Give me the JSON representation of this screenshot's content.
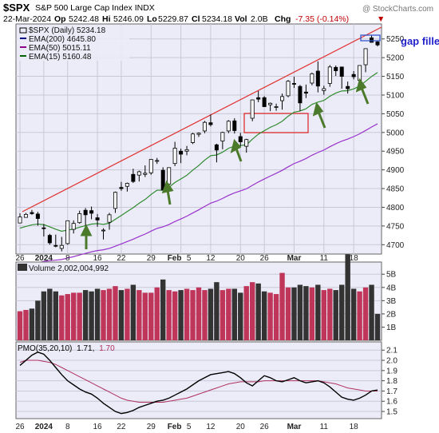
{
  "header": {
    "symbol": "$SPX",
    "name": "S&P 500 Large Cap Index INDX",
    "date": "22-Mar-2024",
    "open_label": "Op",
    "open": "5242.48",
    "high_label": "Hi",
    "high": "5246.09",
    "low_label": "Lo",
    "low": "5229.87",
    "close_label": "Cl",
    "close": "5234.18",
    "vol_label": "Vol",
    "vol": "2.0B",
    "chg_label": "Chg",
    "chg": "-7.35 (-0.14%)",
    "chg_arrow": "▼",
    "watermark": "@ StockCharts.com"
  },
  "price_panel": {
    "legend": [
      {
        "label": "$SPX (Daily) 5234.18",
        "color": "#000000"
      },
      {
        "label": "EMA(200) 4645.80",
        "color": "#00008b"
      },
      {
        "label": "EMA(50) 5015.11",
        "color": "#8b008b"
      },
      {
        "label": "EMA(15) 5160.48",
        "color": "#006400"
      }
    ],
    "annotation": "gap filled",
    "y_ticks": [
      "5250",
      "5200",
      "5150",
      "5100",
      "5050",
      "5000",
      "4950",
      "4900",
      "4850",
      "4800",
      "4750",
      "4700"
    ]
  },
  "volume_panel": {
    "legend": "Volume 2,002,004,992",
    "y_ticks": [
      "5B",
      "4B",
      "3B",
      "2B",
      "1B"
    ]
  },
  "pmo_panel": {
    "legend_prefix": "PMO(35,20,10)",
    "legend_value1": "1.71,",
    "legend_value2": "1.70",
    "y_ticks": [
      "2.1",
      "2.0",
      "1.9",
      "1.8",
      "1.7",
      "1.6",
      "1.5"
    ]
  },
  "x_axis": {
    "labels": [
      {
        "text": "26",
        "bold": false
      },
      {
        "text": "2024",
        "bold": true
      },
      {
        "text": "8",
        "bold": false
      },
      {
        "text": "16",
        "bold": false
      },
      {
        "text": "22",
        "bold": false
      },
      {
        "text": "29",
        "bold": false
      },
      {
        "text": "Feb",
        "bold": true
      },
      {
        "text": "5",
        "bold": false
      },
      {
        "text": "12",
        "bold": false
      },
      {
        "text": "20",
        "bold": false
      },
      {
        "text": "26",
        "bold": false
      },
      {
        "text": "Mar",
        "bold": true
      },
      {
        "text": "11",
        "bold": false
      },
      {
        "text": "18",
        "bold": false
      }
    ]
  },
  "colors": {
    "up_candle": "#ffffff",
    "down_candle": "#000000",
    "trendline": "#e03030",
    "ema15": "#2e8b2e",
    "ema50": "#9932cc",
    "arrow": "#4a7a2a",
    "vol_up": "#c0365a",
    "vol_down": "#333333",
    "pmo_line": "#000000",
    "pmo_signal": "#b03060",
    "gap_box": "#3355cc",
    "red_box": "#dd2222"
  },
  "chart_data": {
    "type": "candlestick",
    "x": [
      "Dec 26",
      "Dec 27",
      "Dec 28",
      "Dec 29",
      "Jan 2",
      "Jan 3",
      "Jan 4",
      "Jan 5",
      "Jan 8",
      "Jan 9",
      "Jan 10",
      "Jan 11",
      "Jan 12",
      "Jan 16",
      "Jan 17",
      "Jan 18",
      "Jan 19",
      "Jan 22",
      "Jan 23",
      "Jan 24",
      "Jan 25",
      "Jan 26",
      "Jan 29",
      "Jan 30",
      "Jan 31",
      "Feb 1",
      "Feb 2",
      "Feb 5",
      "Feb 6",
      "Feb 7",
      "Feb 8",
      "Feb 9",
      "Feb 12",
      "Feb 13",
      "Feb 14",
      "Feb 15",
      "Feb 16",
      "Feb 20",
      "Feb 21",
      "Feb 22",
      "Feb 23",
      "Feb 26",
      "Feb 27",
      "Feb 28",
      "Feb 29",
      "Mar 1",
      "Mar 4",
      "Mar 5",
      "Mar 6",
      "Mar 7",
      "Mar 8",
      "Mar 11",
      "Mar 12",
      "Mar 13",
      "Mar 14",
      "Mar 15",
      "Mar 18",
      "Mar 19",
      "Mar 20",
      "Mar 21",
      "Mar 22"
    ],
    "ohlc": [
      [
        4758,
        4784,
        4758,
        4774
      ],
      [
        4773,
        4785,
        4773,
        4781
      ],
      [
        4786,
        4793,
        4780,
        4783
      ],
      [
        4782,
        4788,
        4751,
        4770
      ],
      [
        4745,
        4755,
        4722,
        4743
      ],
      [
        4725,
        4729,
        4700,
        4705
      ],
      [
        4698,
        4727,
        4693,
        4697
      ],
      [
        4690,
        4721,
        4682,
        4698
      ],
      [
        4703,
        4764,
        4700,
        4764
      ],
      [
        4741,
        4765,
        4730,
        4757
      ],
      [
        4759,
        4791,
        4756,
        4783
      ],
      [
        4792,
        4798,
        4740,
        4780
      ],
      [
        4791,
        4802,
        4768,
        4784
      ],
      [
        4772,
        4782,
        4748,
        4766
      ],
      [
        4739,
        4744,
        4714,
        4739
      ],
      [
        4760,
        4785,
        4740,
        4780
      ],
      [
        4797,
        4842,
        4785,
        4840
      ],
      [
        4853,
        4868,
        4844,
        4850
      ],
      [
        4856,
        4866,
        4842,
        4864
      ],
      [
        4888,
        4903,
        4865,
        4869
      ],
      [
        4886,
        4898,
        4869,
        4895
      ],
      [
        4888,
        4912,
        4881,
        4891
      ],
      [
        4892,
        4929,
        4887,
        4928
      ],
      [
        4925,
        4932,
        4916,
        4925
      ],
      [
        4899,
        4907,
        4845,
        4846
      ],
      [
        4862,
        4906,
        4853,
        4906
      ],
      [
        4917,
        4975,
        4910,
        4958
      ],
      [
        4950,
        4957,
        4918,
        4942
      ],
      [
        4950,
        4964,
        4939,
        4954
      ],
      [
        4973,
        4999,
        4969,
        4996
      ],
      [
        4995,
        5000,
        4988,
        4998
      ],
      [
        5004,
        5031,
        4998,
        5027
      ],
      [
        5026,
        5048,
        5016,
        5021
      ],
      [
        4967,
        4970,
        4920,
        4953
      ],
      [
        4977,
        5002,
        4955,
        5000
      ],
      [
        5004,
        5033,
        4998,
        5030
      ],
      [
        5031,
        5038,
        4997,
        5005
      ],
      [
        4989,
        4999,
        4963,
        4975
      ],
      [
        4963,
        4983,
        4946,
        4981
      ],
      [
        5038,
        5088,
        5030,
        5087
      ],
      [
        5093,
        5111,
        5081,
        5089
      ],
      [
        5093,
        5097,
        5068,
        5069
      ],
      [
        5074,
        5080,
        5057,
        5078
      ],
      [
        5068,
        5077,
        5058,
        5069
      ],
      [
        5085,
        5104,
        5061,
        5096
      ],
      [
        5098,
        5140,
        5094,
        5137
      ],
      [
        5131,
        5149,
        5119,
        5130
      ],
      [
        5123,
        5127,
        5057,
        5079
      ],
      [
        5108,
        5128,
        5092,
        5105
      ],
      [
        5132,
        5160,
        5126,
        5157
      ],
      [
        5164,
        5190,
        5107,
        5124
      ],
      [
        5112,
        5125,
        5101,
        5117
      ],
      [
        5131,
        5180,
        5122,
        5175
      ],
      [
        5174,
        5179,
        5151,
        5165
      ],
      [
        5175,
        5176,
        5117,
        5150
      ],
      [
        5123,
        5136,
        5104,
        5117
      ],
      [
        5155,
        5164,
        5142,
        5149
      ],
      [
        5139,
        5180,
        5138,
        5179
      ],
      [
        5181,
        5225,
        5161,
        5224
      ],
      [
        5253,
        5261,
        5240,
        5241
      ],
      [
        5242,
        5246,
        5230,
        5234
      ]
    ],
    "volume_billions": [
      2.2,
      2.3,
      2.4,
      3.0,
      3.7,
      3.9,
      3.7,
      3.4,
      3.5,
      3.6,
      3.6,
      3.8,
      3.7,
      3.9,
      3.8,
      3.9,
      4.1,
      3.8,
      3.9,
      4.2,
      3.8,
      3.6,
      3.6,
      4.0,
      4.6,
      3.8,
      3.7,
      3.8,
      3.9,
      3.8,
      4.0,
      3.8,
      3.9,
      4.4,
      3.8,
      3.9,
      3.9,
      3.6,
      4.1,
      4.4,
      4.3,
      3.7,
      3.6,
      3.5,
      5.1,
      4.0,
      4.0,
      4.2,
      4.1,
      4.0,
      4.2,
      3.8,
      3.9,
      3.8,
      4.2,
      6.5,
      3.9,
      3.7,
      4.0,
      4.2,
      2.0
    ],
    "ema200_last": 4645.8,
    "ema50_last": 5015.11,
    "ema15_last": 5160.48,
    "pmo_last": 1.71,
    "pmo_signal_last": 1.7
  }
}
